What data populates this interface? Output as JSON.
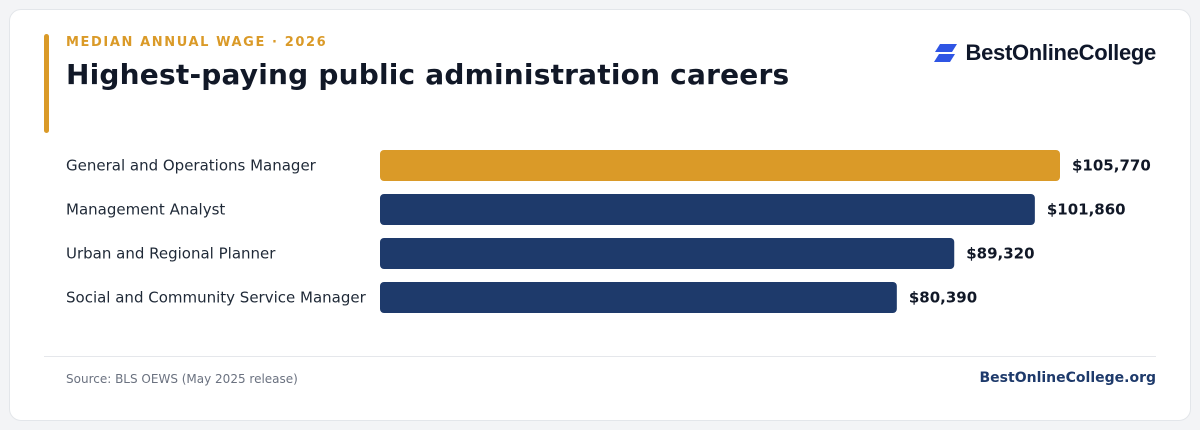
{
  "header": {
    "eyebrow": "MEDIAN ANNUAL WAGE · 2026",
    "title": "Highest-paying public administration careers"
  },
  "brand": {
    "name": "BestOnlineCollege",
    "icon": "brand-logo-icon",
    "icon_color": "#2f55e4"
  },
  "colors": {
    "accent": "#da9a28",
    "bar": "#1e3a6b",
    "highlight": "#da9a28",
    "label_text": "#1f2937",
    "value_text": "#111827"
  },
  "chart_data": {
    "type": "bar",
    "orientation": "horizontal",
    "categories": [
      "General and Operations Manager",
      "Management Analyst",
      "Urban and Regional Planner",
      "Social and Community Service Manager"
    ],
    "values": [
      105770,
      101860,
      89320,
      80390
    ],
    "value_labels": [
      "$105,770",
      "$101,860",
      "$89,320",
      "$80,390"
    ],
    "highlight_index": 0,
    "xlim": [
      0,
      105770
    ],
    "grid": false,
    "legend": "none"
  },
  "footer": {
    "source": "Source: BLS OEWS (May 2025 release)",
    "site": "BestOnlineCollege.org"
  }
}
